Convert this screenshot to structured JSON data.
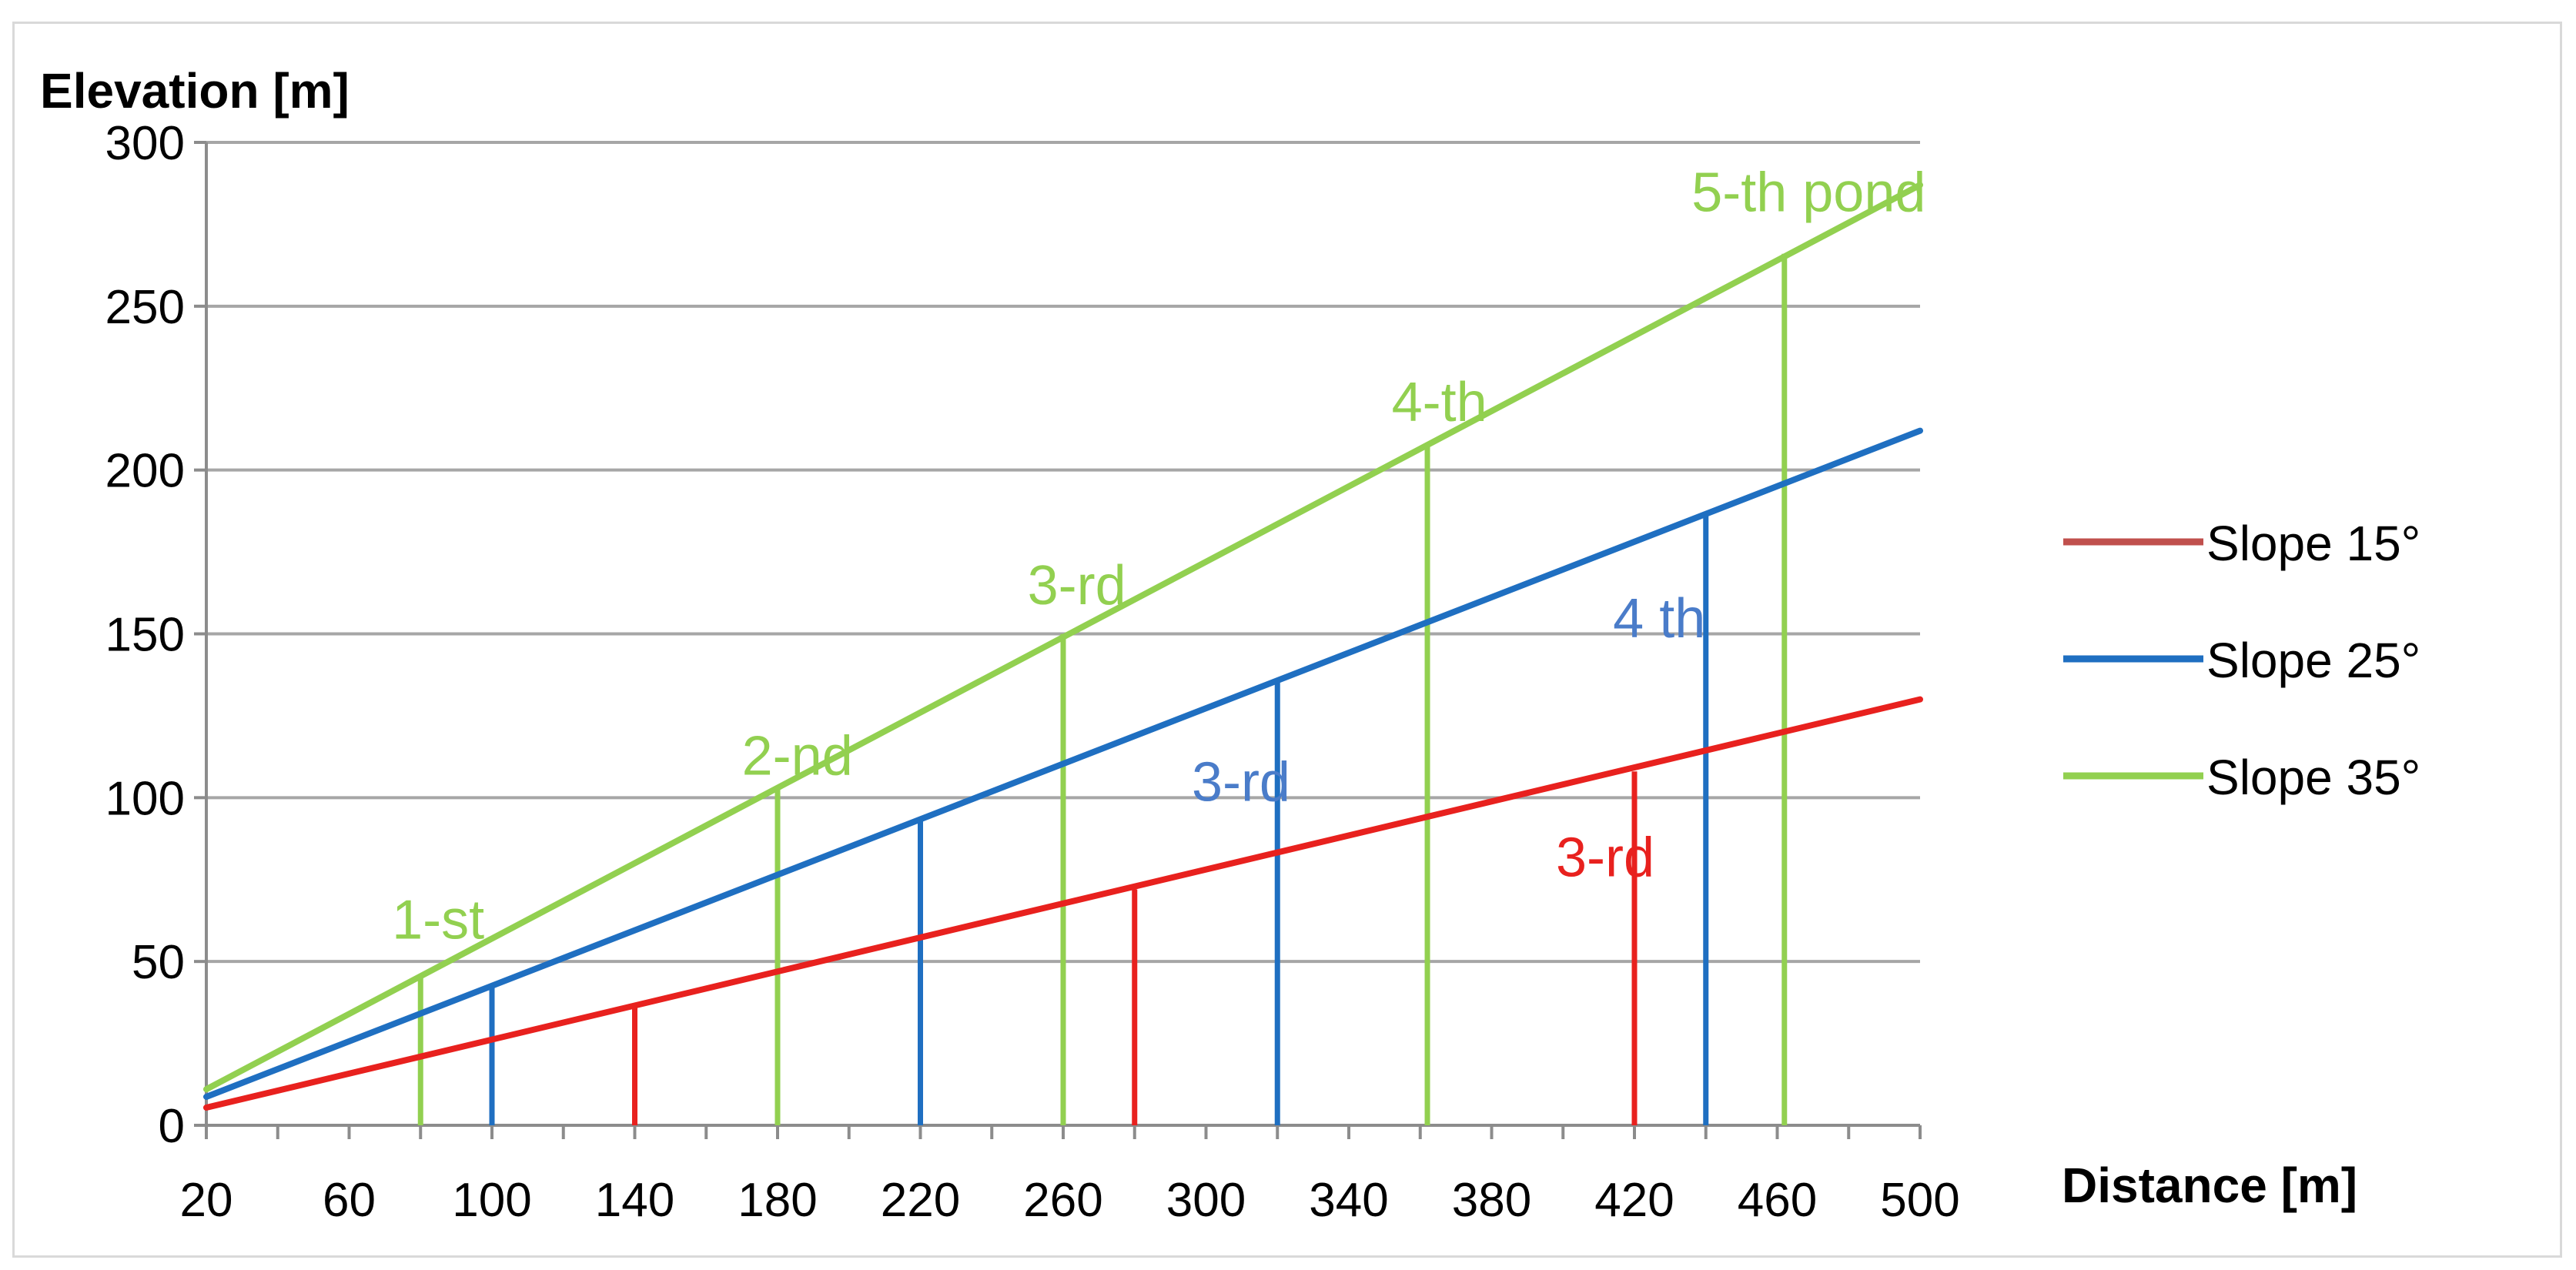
{
  "chart_data": {
    "type": "line",
    "title": "",
    "xlabel": "Distance [m]",
    "ylabel": "Elevation [m]",
    "xlim": [
      20,
      500
    ],
    "ylim": [
      0,
      300
    ],
    "x_ticks": [
      "20",
      "60",
      "100",
      "140",
      "180",
      "220",
      "260",
      "300",
      "340",
      "380",
      "420",
      "460",
      "500"
    ],
    "y_ticks": [
      "0",
      "50",
      "100",
      "150",
      "200",
      "250",
      "300"
    ],
    "grid": "horizontal",
    "legend_position": "right",
    "series": [
      {
        "name": "Slope 15°",
        "color": "#e8211e",
        "legend_color": "#c0504d",
        "x": [
          20,
          500
        ],
        "y": [
          5.4,
          130
        ],
        "drops": [
          {
            "x": 140,
            "y": 36
          },
          {
            "x": 280,
            "y": 72
          },
          {
            "x": 420,
            "y": 108
          }
        ]
      },
      {
        "name": "Slope 25°",
        "color": "#1f6fc1",
        "legend_color": "#1f6fc1",
        "x": [
          20,
          500
        ],
        "y": [
          8.7,
          212
        ],
        "drops": [
          {
            "x": 100,
            "y": 43
          },
          {
            "x": 220,
            "y": 93
          },
          {
            "x": 320,
            "y": 136
          },
          {
            "x": 440,
            "y": 186
          }
        ]
      },
      {
        "name": "Slope 35°",
        "color": "#92d050",
        "legend_color": "#92d050",
        "x": [
          20,
          500
        ],
        "y": [
          11,
          287
        ],
        "drops": [
          {
            "x": 80,
            "y": 46
          },
          {
            "x": 180,
            "y": 103
          },
          {
            "x": 260,
            "y": 150
          },
          {
            "x": 362,
            "y": 208
          },
          {
            "x": 462,
            "y": 266
          }
        ]
      }
    ],
    "annotations": [
      {
        "text": "1-st",
        "x": 72,
        "y": 57,
        "color": "#92d050"
      },
      {
        "text": "2-nd",
        "x": 170,
        "y": 107,
        "color": "#92d050"
      },
      {
        "text": "3-rd",
        "x": 250,
        "y": 159,
        "color": "#92d050"
      },
      {
        "text": "4-th",
        "x": 352,
        "y": 215,
        "color": "#92d050"
      },
      {
        "text": "5-th pond",
        "x": 436,
        "y": 279,
        "color": "#92d050"
      },
      {
        "text": "3-rd",
        "x": 296,
        "y": 99,
        "color": "#4a7cc9"
      },
      {
        "text": "4 th",
        "x": 414,
        "y": 149,
        "color": "#4a7cc9"
      },
      {
        "text": "3-rd",
        "x": 398,
        "y": 76,
        "color": "#e8211e"
      }
    ]
  }
}
